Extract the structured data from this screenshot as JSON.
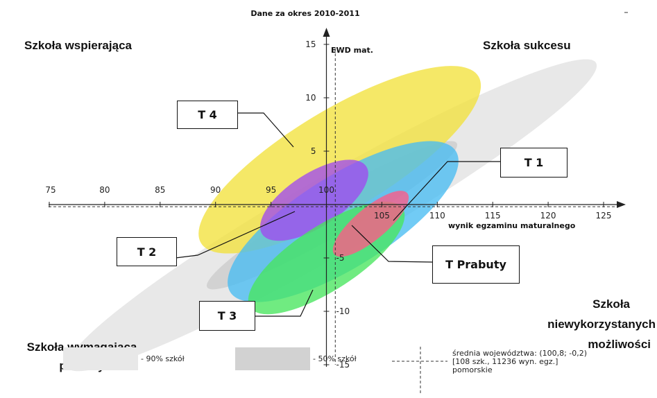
{
  "chart_data": {
    "type": "scatter",
    "title": "Dane za okres 2010-2011",
    "xlabel": "wynik egzaminu maturalnego",
    "ylabel": "EWD mat.",
    "xlim": [
      75,
      127
    ],
    "ylim": [
      -15,
      16
    ],
    "x_ticks": [
      75,
      80,
      85,
      90,
      95,
      100,
      105,
      110,
      115,
      120,
      125
    ],
    "x_tick_labels": [
      "75",
      "80",
      "85",
      "90",
      "95",
      "100",
      "105",
      "110",
      "115",
      "120",
      "125"
    ],
    "y_ticks": [
      -15,
      -10,
      -5,
      5,
      10,
      15
    ],
    "y_tick_labels": [
      "-15",
      "-10",
      "-5",
      "5",
      "10",
      "15"
    ],
    "grid": false,
    "reference_point": {
      "x": 100.8,
      "y": -0.2
    },
    "ellipses": [
      {
        "band": "90% szkół",
        "cx": 100.5,
        "cy": -1.0,
        "rx": 27.5,
        "ry": 3.6,
        "angle_deg": -30,
        "color": "#e8e8e8"
      },
      {
        "band": "50% szkół",
        "cx": 100.5,
        "cy": -1.0,
        "rx": 13.0,
        "ry": 1.9,
        "angle_deg": -30,
        "color": "#d2d2d2"
      },
      {
        "label": "T 4",
        "cx": 101.2,
        "cy": 4.2,
        "rx": 14.6,
        "ry": 4.7,
        "angle_deg": -31,
        "color": "#f2e23c"
      },
      {
        "label": "T 1",
        "cx": 101.5,
        "cy": -1.6,
        "rx": 12.0,
        "ry": 4.3,
        "angle_deg": -32,
        "color": "#49bdf2"
      },
      {
        "label": "T 2",
        "cx": 98.9,
        "cy": 0.4,
        "rx": 5.6,
        "ry": 2.5,
        "angle_deg": -33,
        "color": "#a04aef"
      },
      {
        "label": "T 3",
        "cx": 100.0,
        "cy": -5.0,
        "rx": 8.2,
        "ry": 3.0,
        "angle_deg": -33,
        "color": "#48e65e"
      },
      {
        "label": "T Prabuty",
        "cx": 104.0,
        "cy": -1.8,
        "rx": 4.3,
        "ry": 1.5,
        "angle_deg": -40,
        "color": "#ff5a86"
      }
    ]
  },
  "quadrants": {
    "top_left": "Szkoła wspierająca",
    "top_right": "Szkoła sukcesu",
    "bottom_left_line1": "Szkoła wymagająca",
    "bottom_left_line2": "pomocy",
    "bottom_right_line1": "Szkoła",
    "bottom_right_line2": "niewykorzystanych",
    "bottom_right_line3": "możliwości"
  },
  "callouts": {
    "t4": "T 4",
    "t1": "T 1",
    "t2": "T 2",
    "t3": "T 3",
    "prabuty": "T Prabuty"
  },
  "legend": {
    "band90": "- 90% szkół",
    "band50": "- 50% szkół",
    "avg_line1": "średnia województwa: (100,8; -0,2)",
    "avg_line2": "[108 szk., 11236 wyn. egz.]",
    "avg_line3": "pomorskie",
    "band90_color": "#e8e8e8",
    "band50_color": "#d2d2d2"
  }
}
